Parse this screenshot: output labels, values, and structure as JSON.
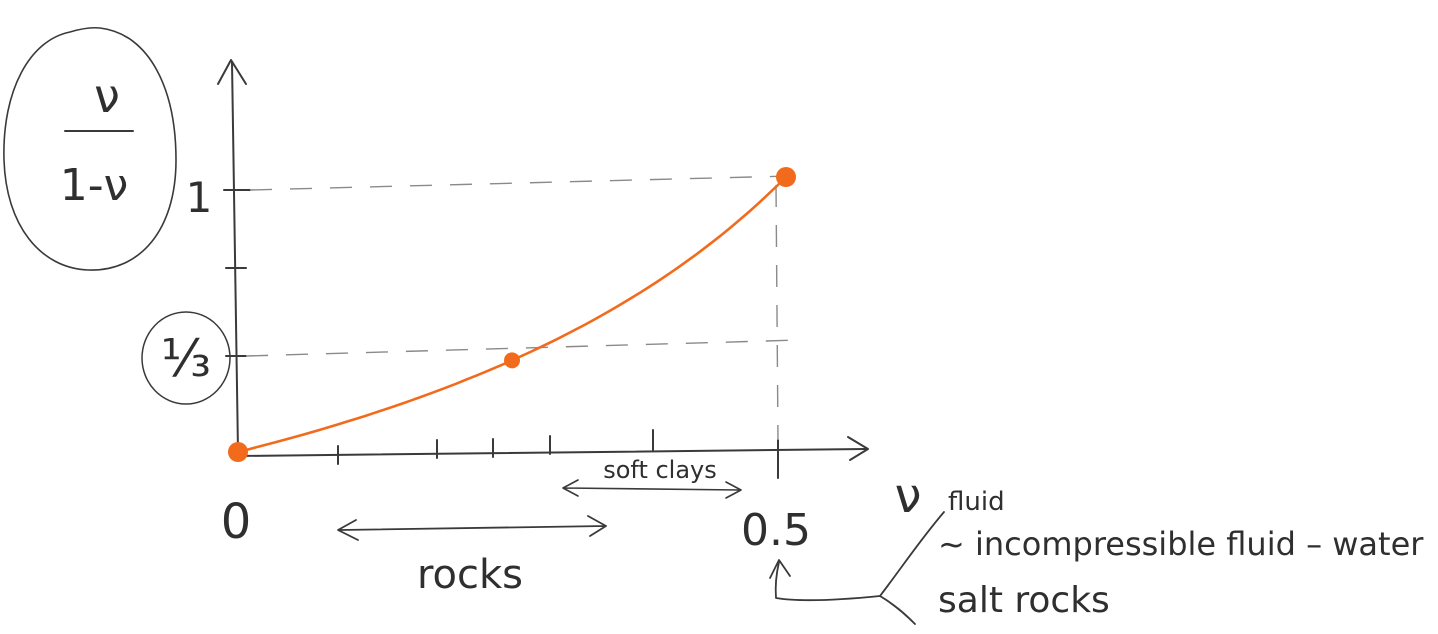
{
  "y_axis_label": {
    "numerator": "ν",
    "denominator": "1-ν"
  },
  "tick_labels": {
    "x_start": "0",
    "x_end": "0.5",
    "y_one_third": "⅓",
    "y_one": "1"
  },
  "ranges": {
    "rocks": "rocks",
    "soft_clays": "soft clays"
  },
  "annotations": {
    "nu_symbol": "ν",
    "fluid": "fluid",
    "incompressible": "~ incompressible fluid – water",
    "salt_rocks": "salt rocks"
  },
  "colors": {
    "curve": "#f26b1d",
    "ink": "#2f2f2f",
    "guide": "#8a8a8a"
  },
  "chart_data": {
    "type": "line",
    "xlim": [
      0,
      0.5
    ],
    "ylim": [
      0,
      1
    ],
    "series": [
      {
        "x": [
          0,
          0.125,
          0.25,
          0.375,
          0.5
        ],
        "y": [
          0,
          0.1429,
          0.3333,
          0.6,
          1
        ]
      }
    ],
    "highlighted_points": [
      {
        "x": 0,
        "y": 0
      },
      {
        "x": 0.25,
        "y": 0.3333
      },
      {
        "x": 0.5,
        "y": 1
      }
    ]
  }
}
